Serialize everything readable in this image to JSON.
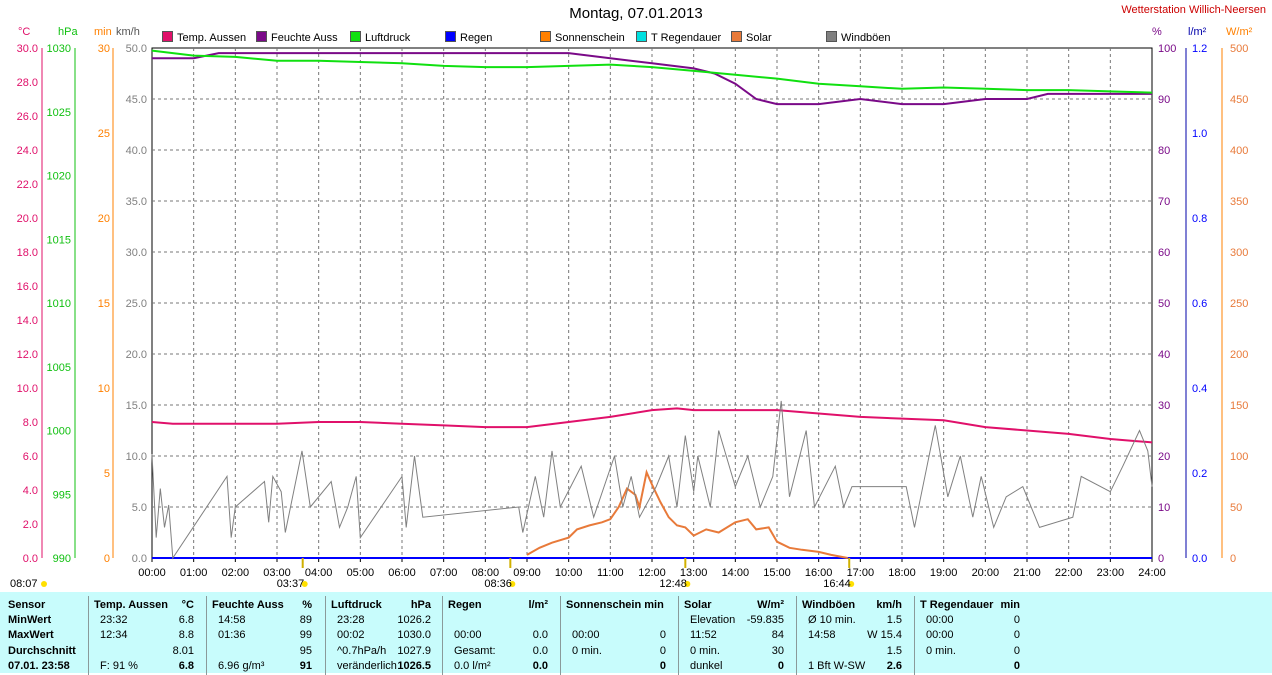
{
  "title": "Montag, 07.01.2013",
  "station": "Wetterstation Willich-Neersen",
  "units": {
    "left": [
      "°C",
      "hPa",
      "min",
      "km/h"
    ],
    "right": [
      "%",
      "l/m²",
      "W/m²"
    ]
  },
  "legend": [
    {
      "label": "Temp. Aussen",
      "color": "#e0106a"
    },
    {
      "label": "Feuchte Auss",
      "color": "#7a0a88"
    },
    {
      "label": "Luftdruck",
      "color": "#10e010"
    },
    {
      "label": "Regen",
      "color": "#0000ff"
    },
    {
      "label": "Sonnenschein",
      "color": "#ff8000"
    },
    {
      "label": "T Regendauer",
      "color": "#00e0e0"
    },
    {
      "label": "Solar",
      "color": "#e87a3a"
    },
    {
      "label": "Windböen",
      "color": "#808080"
    }
  ],
  "chart_data": {
    "type": "line",
    "title": "Montag, 07.01.2013",
    "x_ticks": [
      "00:00",
      "01:00",
      "02:00",
      "03:00",
      "04:00",
      "05:00",
      "06:00",
      "07:00",
      "08:00",
      "09:00",
      "10:00",
      "11:00",
      "12:00",
      "13:00",
      "14:00",
      "15:00",
      "16:00",
      "17:00",
      "18:00",
      "19:00",
      "20:00",
      "21:00",
      "22:00",
      "23:00",
      "24:00"
    ],
    "axes": {
      "temp_c": {
        "ticks": [
          "30.0",
          "28.0",
          "26.0",
          "24.0",
          "22.0",
          "20.0",
          "18.0",
          "16.0",
          "14.0",
          "12.0",
          "10.0",
          "8.0",
          "6.0",
          "4.0",
          "2.0",
          "0.0"
        ],
        "range": [
          0,
          30
        ],
        "color": "#e0106a"
      },
      "pressure_hpa": {
        "ticks": [
          "1030",
          "1025",
          "1020",
          "1015",
          "1010",
          "1005",
          "1000",
          "995",
          "990"
        ],
        "range": [
          990,
          1030
        ],
        "color": "#10c010"
      },
      "sunshine_min": {
        "ticks": [
          "30",
          "25",
          "20",
          "15",
          "10",
          "5",
          "0"
        ],
        "range": [
          0,
          30
        ],
        "color": "#ff8000"
      },
      "wind_kmh": {
        "ticks": [
          "50.0",
          "45.0",
          "40.0",
          "35.0",
          "30.0",
          "25.0",
          "20.0",
          "15.0",
          "10.0",
          "5.0",
          "0.0"
        ],
        "range": [
          0,
          50
        ],
        "color": "#808080"
      },
      "humidity_pct": {
        "ticks": [
          "100",
          "90",
          "80",
          "70",
          "60",
          "50",
          "40",
          "30",
          "20",
          "10",
          "0"
        ],
        "range": [
          0,
          100
        ],
        "color": "#7a0a88"
      },
      "rain_lm2": {
        "ticks": [
          "1.2",
          "1.0",
          "0.8",
          "0.6",
          "0.4",
          "0.2",
          "0.0"
        ],
        "range": [
          0,
          1.2
        ],
        "color": "#0000ff"
      },
      "solar_wm2": {
        "ticks": [
          "500",
          "450",
          "400",
          "350",
          "300",
          "250",
          "200",
          "150",
          "100",
          "50",
          "0"
        ],
        "range": [
          0,
          500
        ],
        "color": "#e87a3a"
      }
    },
    "series": [
      {
        "name": "Temp. Aussen",
        "color": "#e0106a",
        "axis": "temp_c",
        "x": [
          0,
          0.5,
          1,
          2,
          3,
          4,
          5,
          6,
          7,
          8,
          9,
          10,
          11,
          12,
          12.6,
          13,
          14,
          15,
          16,
          17,
          18,
          19,
          20,
          21,
          22,
          23,
          23.5,
          24
        ],
        "y": [
          8.0,
          7.9,
          7.9,
          7.9,
          7.9,
          8.0,
          8.0,
          7.9,
          7.8,
          7.7,
          7.7,
          8.0,
          8.3,
          8.7,
          8.8,
          8.7,
          8.7,
          8.7,
          8.5,
          8.3,
          8.2,
          8.1,
          7.7,
          7.5,
          7.3,
          7.0,
          6.9,
          6.8
        ]
      },
      {
        "name": "Feuchte Auss",
        "color": "#7a0a88",
        "axis": "humidity_pct",
        "x": [
          0,
          1,
          1.6,
          2,
          3,
          4,
          5,
          6,
          7,
          8,
          9,
          10,
          11,
          12,
          13,
          13.5,
          14,
          14.5,
          15,
          16,
          17,
          18,
          19,
          20,
          21,
          21.5,
          22,
          23,
          23.5,
          24
        ],
        "y": [
          98,
          98,
          99,
          99,
          99,
          99,
          99,
          99,
          99,
          99,
          99,
          99,
          98,
          97,
          96,
          95,
          93,
          90,
          89,
          89,
          90,
          89,
          89,
          90,
          90,
          91,
          91,
          91,
          91,
          91
        ]
      },
      {
        "name": "Luftdruck",
        "color": "#10e010",
        "axis": "pressure_hpa",
        "x": [
          0,
          1,
          2,
          3,
          4,
          5,
          6,
          7,
          8,
          9,
          10,
          11,
          12,
          13,
          14,
          15,
          16,
          17,
          18,
          19,
          20,
          21,
          22,
          23,
          24
        ],
        "y": [
          1029.8,
          1029.4,
          1029.3,
          1029.0,
          1029.0,
          1028.9,
          1028.8,
          1028.6,
          1028.5,
          1028.5,
          1028.6,
          1028.7,
          1028.5,
          1028.2,
          1027.9,
          1027.6,
          1027.2,
          1027.0,
          1026.8,
          1026.9,
          1026.8,
          1026.7,
          1026.7,
          1026.6,
          1026.5
        ]
      },
      {
        "name": "Regen",
        "color": "#0000ff",
        "axis": "rain_lm2",
        "x": [
          0,
          24
        ],
        "y": [
          0,
          0
        ]
      },
      {
        "name": "Solar",
        "color": "#e87a3a",
        "axis": "solar_wm2",
        "x": [
          9.0,
          9.3,
          9.6,
          10.0,
          10.2,
          10.5,
          10.8,
          11.0,
          11.2,
          11.4,
          11.6,
          11.7,
          11.87,
          12.0,
          12.2,
          12.4,
          12.6,
          12.8,
          13.0,
          13.3,
          13.6,
          14.0,
          14.3,
          14.5,
          14.8,
          15.0,
          15.3,
          15.6,
          16.0,
          16.3,
          16.7
        ],
        "y": [
          3,
          10,
          15,
          20,
          28,
          32,
          35,
          38,
          50,
          68,
          62,
          50,
          84,
          72,
          55,
          40,
          32,
          30,
          22,
          28,
          25,
          35,
          38,
          28,
          30,
          16,
          10,
          8,
          6,
          3,
          0
        ]
      },
      {
        "name": "Windböen",
        "color": "#808080",
        "axis": "wind_kmh",
        "x": [
          0.0,
          0.1,
          0.2,
          0.3,
          0.4,
          0.5,
          1.8,
          1.9,
          2.0,
          2.7,
          2.8,
          2.9,
          3.1,
          3.2,
          3.6,
          3.8,
          4.3,
          4.5,
          4.7,
          4.9,
          5.0,
          6.0,
          6.1,
          6.3,
          6.5,
          8.8,
          8.9,
          9.2,
          9.4,
          9.6,
          9.8,
          10.3,
          10.6,
          11.1,
          11.3,
          11.5,
          11.7,
          12.1,
          12.4,
          12.6,
          12.8,
          13.0,
          13.1,
          13.4,
          13.6,
          14.0,
          14.3,
          14.6,
          14.9,
          15.1,
          15.3,
          15.7,
          15.9,
          16.4,
          16.6,
          16.8,
          18.1,
          18.3,
          18.6,
          18.8,
          19.1,
          19.4,
          19.7,
          19.9,
          20.2,
          20.5,
          20.9,
          21.3,
          22.1,
          22.3,
          23.0,
          23.3,
          23.7,
          23.9,
          24.0
        ],
        "y": [
          10.2,
          2.0,
          6.8,
          3.0,
          5.2,
          0,
          8.0,
          2.0,
          5.0,
          7.5,
          3.5,
          8.0,
          6.5,
          2.5,
          10.5,
          5.0,
          7.5,
          3.0,
          5.0,
          8.0,
          2.0,
          8.0,
          3.0,
          10.0,
          4.0,
          5.0,
          2.5,
          8.0,
          4.0,
          10.5,
          5.0,
          9.0,
          4.0,
          10.0,
          5.0,
          8.0,
          4.0,
          7.0,
          10.0,
          5.0,
          12.0,
          6.5,
          10.0,
          5.0,
          12.5,
          7.0,
          10.0,
          5.0,
          8.0,
          15.4,
          6.0,
          12.5,
          5.0,
          9.0,
          5.0,
          7.0,
          7.0,
          3.0,
          9.0,
          13.0,
          6.0,
          10.0,
          4.0,
          8.0,
          3.0,
          6.0,
          7.0,
          3.0,
          4.0,
          8.0,
          6.5,
          9.0,
          12.5,
          10.5,
          7.0
        ]
      }
    ],
    "sun_markers": [
      {
        "label": "08:07",
        "time": "08:07"
      },
      {
        "label": "03:37",
        "time": "03:37"
      },
      {
        "label": "08:36",
        "time": "08:36"
      },
      {
        "label": "12:48",
        "time": "12:48"
      },
      {
        "label": "16:44",
        "time": "16:44"
      }
    ]
  },
  "table": {
    "rows": [
      "Sensor",
      "MinWert",
      "MaxWert",
      "Durchschnitt",
      "07.01. 23:58"
    ],
    "columns": [
      {
        "header": "Temp. Aussen",
        "unit": "°C",
        "rows": [
          [
            "23:32",
            "6.8"
          ],
          [
            "12:34",
            "8.8"
          ],
          [
            "",
            "8.01"
          ],
          [
            "F: 91 %",
            "6.8"
          ]
        ]
      },
      {
        "header": "Feuchte Auss",
        "unit": "%",
        "rows": [
          [
            "14:58",
            "89"
          ],
          [
            "01:36",
            "99"
          ],
          [
            "",
            "95"
          ],
          [
            "6.96 g/m³",
            "91"
          ]
        ]
      },
      {
        "header": "Luftdruck",
        "unit": "hPa",
        "rows": [
          [
            "23:28",
            "1026.2"
          ],
          [
            "00:02",
            "1030.0"
          ],
          [
            "^0.7hPa/h",
            "1027.9"
          ],
          [
            "veränderlich",
            "1026.5"
          ]
        ]
      },
      {
        "header": "Regen",
        "unit": "l/m²",
        "rows": [
          [
            "",
            ""
          ],
          [
            "00:00",
            "0.0"
          ],
          [
            "Gesamt:",
            "0.0"
          ],
          [
            "0.0 l/m²",
            "0.0"
          ]
        ]
      },
      {
        "header": "Sonnenschein min",
        "unit": "",
        "rows": [
          [
            "",
            ""
          ],
          [
            "00:00",
            "0"
          ],
          [
            "0 min.",
            "0"
          ],
          [
            "",
            "0"
          ]
        ]
      },
      {
        "header": "Solar",
        "unit": "W/m²",
        "rows": [
          [
            "Elevation",
            "-59.835"
          ],
          [
            "11:52",
            "84"
          ],
          [
            "0 min.",
            "30"
          ],
          [
            "dunkel",
            "0"
          ]
        ]
      },
      {
        "header": "Windböen",
        "unit": "km/h",
        "rows": [
          [
            "Ø 10 min.",
            "1.5"
          ],
          [
            "14:58",
            "W 15.4"
          ],
          [
            "",
            "1.5"
          ],
          [
            "1 Bft W-SW",
            "2.6"
          ]
        ]
      },
      {
        "header": "T Regendauer",
        "unit": "min",
        "rows": [
          [
            "00:00",
            "0"
          ],
          [
            "00:00",
            "0"
          ],
          [
            "0 min.",
            "0"
          ],
          [
            "",
            "0"
          ]
        ]
      }
    ]
  }
}
